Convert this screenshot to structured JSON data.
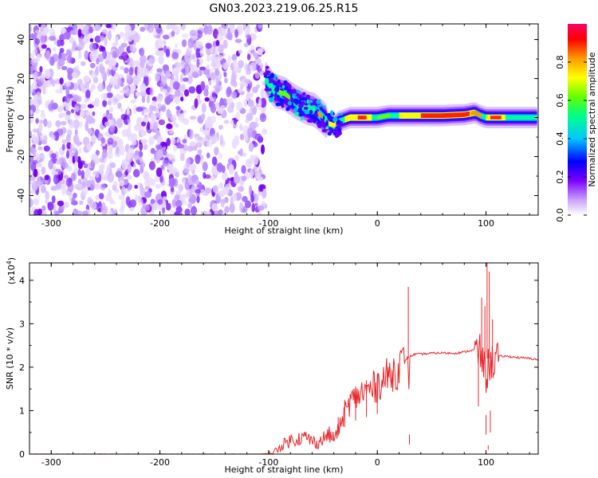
{
  "figure": {
    "title": "GN03.2023.219.06.25.R15"
  },
  "chart_data": [
    {
      "type": "heatmap",
      "xlabel": "Height of straight line (km)",
      "ylabel": "Frequency (Hz)",
      "xlim": [
        -320,
        148
      ],
      "ylim": [
        -50,
        48
      ],
      "xticks": [
        -300,
        -200,
        -100,
        0,
        100
      ],
      "yticks": [
        -40,
        -20,
        0,
        20,
        40
      ],
      "xtick_labels": [
        "-300",
        "-200",
        "-100",
        "0",
        "100"
      ],
      "ytick_labels": [
        "-40",
        "-20",
        "0",
        "20",
        "40"
      ],
      "noise_region_x": [
        -320,
        -103
      ],
      "ridge": {
        "x": [
          -103,
          -95,
          -85,
          -75,
          -65,
          -58,
          -50,
          -45,
          -40,
          -35,
          -25,
          -10,
          0,
          10,
          25,
          40,
          60,
          80,
          90,
          95,
          100,
          110,
          120,
          148
        ],
        "y": [
          20,
          14,
          12,
          8,
          5,
          4,
          0,
          -3,
          -4,
          -2,
          0,
          0,
          0,
          1,
          1,
          1,
          1,
          1.5,
          2.5,
          1,
          0,
          0,
          0,
          0
        ]
      },
      "colorbar": {
        "label": "Normalized spectral amplitude",
        "range": [
          0,
          1
        ],
        "ticks": [
          0.0,
          0.2,
          0.4,
          0.6,
          0.8
        ],
        "tick_labels": [
          "0.0",
          "0.2",
          "0.4",
          "0.6",
          "0.8"
        ],
        "colors": [
          "#ffffff",
          "#c9a2ff",
          "#7b00ff",
          "#0000ff",
          "#00c8ff",
          "#00ff88",
          "#66ff00",
          "#ffff00",
          "#ff9900",
          "#ff0000",
          "#ff0066"
        ]
      }
    },
    {
      "type": "line",
      "xlabel": "Height of straight line (km)",
      "ylabel": "SNR (10 * v/v)",
      "y_scale_label": "(x10",
      "y_scale_exponent": "4",
      "y_scale_close": ")",
      "xlim": [
        -320,
        148
      ],
      "ylim": [
        0,
        4.4
      ],
      "xticks": [
        -300,
        -200,
        -100,
        0,
        100
      ],
      "yticks": [
        0,
        1,
        2,
        3,
        4
      ],
      "xtick_labels": [
        "-300",
        "-200",
        "-100",
        "0",
        "100"
      ],
      "ytick_labels": [
        "0",
        "1",
        "2",
        "3",
        "4"
      ],
      "color": "#e8262a",
      "series": [
        {
          "x": [
            -320,
            -200,
            -110,
            -100,
            -95,
            -90,
            -85,
            -80,
            -75,
            -70,
            -65,
            -60,
            -55,
            -50,
            -45,
            -40,
            -35,
            -30,
            -25,
            -20,
            -15,
            -10,
            -5,
            0,
            5,
            10,
            15,
            20,
            25,
            28,
            29,
            30,
            35,
            40,
            50,
            60,
            70,
            80,
            85,
            90,
            95,
            100,
            102,
            105,
            110,
            120,
            130,
            140,
            148
          ],
          "y": [
            0.0,
            0.0,
            0.0,
            0.01,
            0.05,
            0.15,
            0.25,
            0.32,
            0.35,
            0.38,
            0.38,
            0.3,
            0.25,
            0.35,
            0.45,
            0.35,
            0.6,
            0.95,
            1.2,
            1.3,
            1.4,
            1.45,
            1.5,
            1.6,
            1.7,
            1.8,
            1.9,
            2.0,
            2.1,
            2.25,
            1.5,
            2.25,
            2.3,
            2.3,
            2.32,
            2.33,
            2.32,
            2.35,
            2.38,
            2.4,
            2.3,
            1.8,
            2.0,
            2.1,
            2.25,
            2.25,
            2.22,
            2.2,
            2.18
          ]
        }
      ],
      "spikes": [
        {
          "x": -36,
          "y": 0.85
        },
        {
          "x": -30,
          "y": 1.25
        },
        {
          "x": -20,
          "y": 1.55
        },
        {
          "x": -10,
          "y": 1.7
        },
        {
          "x": 0,
          "y": 1.85
        },
        {
          "x": 28.5,
          "y": 3.85
        },
        {
          "x": 29.5,
          "y": 0.45
        },
        {
          "x": 93,
          "y": 2.2
        },
        {
          "x": 96,
          "y": 3.6
        },
        {
          "x": 99,
          "y": 3.4
        },
        {
          "x": 100,
          "y": 0.9
        },
        {
          "x": 101,
          "y": 4.4
        },
        {
          "x": 102,
          "y": 0.2
        },
        {
          "x": 103,
          "y": 4.2
        },
        {
          "x": 104,
          "y": 1.0
        },
        {
          "x": 106,
          "y": 3.1
        }
      ]
    }
  ]
}
